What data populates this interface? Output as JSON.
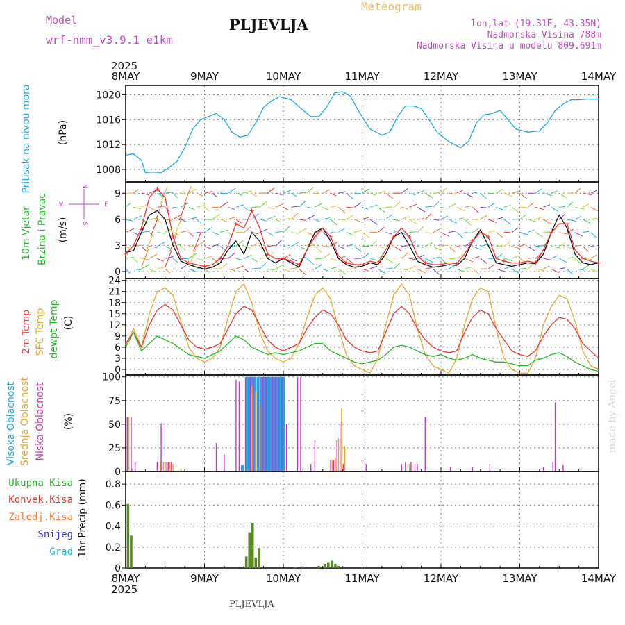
{
  "header": {
    "model_label": "Model",
    "model_name": "wrf-nmm_v3.9.1 e1km",
    "station": "PLJEVLJA",
    "meteogram": "Meteogram",
    "lonlat": "lon,lat (19.31E, 43.35N)",
    "elevation": "Nadmorska Visina 788m",
    "model_elevation": "Nadmorska Visina u modelu 809.691m",
    "year_top": "2025",
    "year_bottom": "2025",
    "footer_station": "PLJEVLJA",
    "credit": "made by Angel"
  },
  "colors": {
    "pressure": "#1fa8e6",
    "magenta": "#cc33cc",
    "green": "#22bb22",
    "orange": "#e8a830",
    "red": "#ee3333",
    "blue": "#3333dd",
    "cyan": "#22c0c0",
    "precip": "#5a8a22",
    "violet": "#7a3acc"
  },
  "time_axis": {
    "ticks": [
      "8MAY",
      "9MAY",
      "10MAY",
      "11MAY",
      "12MAY",
      "13MAY",
      "14MAY"
    ]
  },
  "panels": {
    "pressure": {
      "label": "Pritisak na nivou mora",
      "unit": "(hPa)"
    },
    "wind": {
      "label_1": "10m Vjetar",
      "label_2": "Brzina i Pravac",
      "unit": "(m/s)",
      "compass": {
        "n": "N",
        "s": "S",
        "w": "W",
        "e": "E"
      }
    },
    "temp": {
      "label_1": "2m Temp",
      "label_2": "SFC Temp",
      "label_3": "dewpt Temp",
      "unit": "(C)"
    },
    "cloud": {
      "label_1": "Visoka Oblacnost",
      "label_2": "Srednja Oblacnost",
      "label_3": "Niska Oblacnost",
      "unit": "(%)"
    },
    "precip": {
      "label_1": "Ukupna Kisa",
      "label_2": "Konvek.Kisa",
      "label_3": "Zaledj.Kisa",
      "label_4": "Snijeg",
      "label_5": "Grad",
      "unit": "1hr Precip (mm)"
    }
  },
  "chart_data": [
    {
      "type": "line",
      "title": "Pritisak na nivou mora",
      "ylabel": "(hPa)",
      "ylim": [
        1006,
        1021.5
      ],
      "yticks": [
        1008,
        1012,
        1016,
        1020
      ],
      "x_days": [
        0,
        0.1,
        0.2,
        0.25,
        0.35,
        0.45,
        0.55,
        0.65,
        0.75,
        0.85,
        0.95,
        1.05,
        1.15,
        1.25,
        1.35,
        1.45,
        1.55,
        1.65,
        1.75,
        1.85,
        1.95,
        2.1,
        2.25,
        2.35,
        2.45,
        2.55,
        2.65,
        2.75,
        2.85,
        2.95,
        3.1,
        3.25,
        3.35,
        3.45,
        3.55,
        3.65,
        3.75,
        3.85,
        3.95,
        4.1,
        4.25,
        4.35,
        4.45,
        4.55,
        4.65,
        4.75,
        4.85,
        4.95,
        5.1,
        5.25,
        5.35,
        5.45,
        5.55,
        5.65,
        5.75,
        5.85,
        5.95,
        6.0
      ],
      "series": [
        {
          "values": [
            1010.3,
            1010.5,
            1009.5,
            1007.5,
            1007.6,
            1007.5,
            1008.3,
            1009.3,
            1011.5,
            1014.5,
            1016,
            1016.5,
            1017,
            1016,
            1014,
            1013.2,
            1013.5,
            1015.5,
            1018,
            1019,
            1019.7,
            1019.2,
            1017.5,
            1016.5,
            1016.5,
            1018,
            1020.3,
            1020.5,
            1019.8,
            1017.5,
            1014.5,
            1013.5,
            1014,
            1016.5,
            1018.2,
            1018.2,
            1017.8,
            1016,
            1014,
            1012.5,
            1011.5,
            1012.5,
            1015.5,
            1016.8,
            1017,
            1017.5,
            1016,
            1014.5,
            1014,
            1014.2,
            1015.5,
            1017.5,
            1018.5,
            1019.2,
            1019.2,
            1019.3,
            1019.3,
            1019.3
          ]
        }
      ]
    },
    {
      "type": "line",
      "title": "10m Vjetar Brzina i Pravac",
      "ylabel": "(m/s)",
      "ylim": [
        -0.8,
        10.3
      ],
      "yticks": [
        0,
        3,
        6,
        9
      ],
      "x_days": [
        0,
        0.1,
        0.2,
        0.3,
        0.4,
        0.5,
        0.6,
        0.7,
        0.8,
        0.9,
        1.0,
        1.1,
        1.2,
        1.3,
        1.4,
        1.5,
        1.6,
        1.7,
        1.8,
        1.9,
        2.0,
        2.1,
        2.2,
        2.3,
        2.4,
        2.5,
        2.6,
        2.7,
        2.8,
        2.9,
        3.0,
        3.1,
        3.2,
        3.3,
        3.4,
        3.5,
        3.6,
        3.7,
        3.8,
        3.9,
        4.0,
        4.1,
        4.2,
        4.3,
        4.4,
        4.5,
        4.6,
        4.7,
        4.8,
        4.9,
        5.0,
        5.1,
        5.2,
        5.3,
        5.4,
        5.5,
        5.6,
        5.7,
        5.8,
        5.9,
        6.0
      ],
      "series": [
        {
          "values": [
            2.2,
            2.4,
            4.5,
            6.5,
            7.0,
            6.0,
            3.0,
            1.2,
            0.8,
            0.5,
            0.3,
            0.5,
            1.0,
            2.5,
            3.5,
            2.0,
            4.5,
            3.5,
            1.5,
            1.0,
            1.5,
            1.0,
            0.5,
            2.5,
            4.5,
            5.0,
            3.5,
            1.5,
            0.8,
            0.5,
            0.6,
            1.0,
            0.8,
            2.0,
            4.0,
            4.5,
            3.0,
            1.2,
            0.8,
            0.5,
            0.6,
            0.8,
            0.7,
            1.5,
            3.5,
            4.8,
            3.0,
            1.0,
            0.8,
            0.6,
            0.8,
            1.0,
            0.9,
            2.0,
            4.5,
            6.5,
            5.0,
            2.0,
            1.0,
            0.8,
            1.0
          ]
        },
        {
          "values": [
            2.0,
            3.0,
            5.0,
            8.5,
            9.5,
            8.5,
            4.0,
            1.5,
            1.0,
            0.8,
            0.6,
            0.8,
            1.5,
            3.0,
            5.5,
            5.0,
            7.0,
            5.0,
            2.0,
            1.5,
            1.5,
            1.2,
            0.8,
            2.5,
            4.0,
            5.0,
            4.0,
            1.8,
            1.0,
            0.8,
            0.8,
            1.2,
            1.0,
            2.5,
            4.0,
            5.0,
            4.0,
            1.8,
            1.0,
            0.8,
            0.8,
            1.0,
            0.9,
            2.0,
            3.5,
            4.5,
            4.0,
            1.5,
            1.2,
            1.0,
            1.0,
            1.2,
            1.0,
            2.5,
            4.5,
            5.5,
            5.5,
            2.5,
            1.5,
            1.2,
            1.0
          ]
        }
      ]
    },
    {
      "type": "line",
      "title": "2m Temp / SFC Temp / dewpt Temp",
      "ylabel": "(C)",
      "ylim": [
        -1.5,
        24.5
      ],
      "yticks": [
        0,
        3,
        6,
        9,
        12,
        15,
        18,
        21,
        24
      ],
      "x_days": [
        0,
        0.1,
        0.2,
        0.3,
        0.4,
        0.5,
        0.6,
        0.7,
        0.8,
        0.9,
        1.0,
        1.1,
        1.2,
        1.3,
        1.4,
        1.5,
        1.6,
        1.7,
        1.8,
        1.9,
        2.0,
        2.1,
        2.2,
        2.3,
        2.4,
        2.5,
        2.6,
        2.7,
        2.8,
        2.9,
        3.0,
        3.1,
        3.2,
        3.3,
        3.4,
        3.5,
        3.6,
        3.7,
        3.8,
        3.9,
        4.0,
        4.1,
        4.2,
        4.3,
        4.4,
        4.5,
        4.6,
        4.7,
        4.8,
        4.9,
        5.0,
        5.1,
        5.2,
        5.3,
        5.4,
        5.5,
        5.6,
        5.7,
        5.8,
        5.9,
        6.0
      ],
      "series": [
        {
          "values": [
            7,
            10,
            6,
            12,
            16,
            17.5,
            16,
            12,
            8,
            6,
            5.5,
            6,
            7,
            11,
            15,
            17,
            16,
            12,
            8,
            6,
            5,
            6,
            7,
            11,
            14,
            16,
            15,
            12,
            8,
            6,
            5,
            4.5,
            5,
            10,
            15,
            17,
            15,
            11,
            8,
            6,
            5,
            4.5,
            5,
            10,
            14,
            16,
            15,
            11,
            8,
            5,
            4,
            3.5,
            5,
            9,
            12,
            14,
            13.5,
            11,
            7,
            5,
            3
          ]
        },
        {
          "values": [
            6.5,
            11,
            6,
            15,
            21,
            22,
            20,
            13,
            6,
            3,
            2,
            3,
            6,
            14,
            21,
            23,
            18,
            10,
            5,
            3,
            2,
            3,
            7,
            14,
            20,
            22,
            19,
            11,
            4,
            1,
            0,
            -1,
            3,
            12,
            20,
            23,
            20,
            11,
            4,
            1,
            0,
            -1,
            3,
            12,
            19,
            22,
            21,
            11,
            3,
            0,
            -1,
            -1,
            3,
            12,
            17,
            20,
            19,
            13,
            5,
            1,
            0
          ]
        },
        {
          "values": [
            6,
            10,
            5,
            7,
            9,
            8,
            7,
            5.5,
            4,
            3.5,
            3,
            4,
            5,
            7,
            9,
            8,
            6,
            5,
            4,
            4.5,
            4,
            4.5,
            5,
            6,
            7,
            7,
            5,
            4,
            3,
            2,
            1.5,
            2,
            2.5,
            4,
            6,
            6.5,
            6,
            5,
            4,
            3.5,
            4,
            3,
            2.5,
            3,
            4,
            3,
            2.5,
            2,
            2,
            1.5,
            1,
            1,
            2.5,
            3,
            4,
            4.5,
            3.5,
            2,
            1,
            0,
            -0.5
          ]
        }
      ]
    },
    {
      "type": "bar",
      "title": "Visoka / Srednja / Niska Oblacnost",
      "ylabel": "(%)",
      "ylim": [
        0,
        102
      ],
      "yticks": [
        0,
        25,
        50,
        75,
        100
      ],
      "series": [
        {
          "name": "Visoka Oblacnost",
          "points": [
            [
              1.48,
              7
            ],
            [
              1.54,
              100
            ],
            [
              1.57,
              100
            ],
            [
              1.6,
              100
            ],
            [
              1.64,
              100
            ],
            [
              1.68,
              100
            ],
            [
              1.72,
              100
            ],
            [
              1.76,
              100
            ],
            [
              1.8,
              100
            ],
            [
              1.84,
              100
            ],
            [
              1.88,
              100
            ],
            [
              1.92,
              100
            ],
            [
              1.96,
              100
            ],
            [
              2.0,
              100
            ]
          ]
        },
        {
          "name": "Srednja Oblacnost",
          "points": [
            [
              0.04,
              58
            ],
            [
              0.08,
              3
            ],
            [
              0.44,
              10
            ],
            [
              0.48,
              10
            ],
            [
              0.52,
              10
            ],
            [
              0.56,
              10
            ],
            [
              0.6,
              8
            ],
            [
              0.7,
              3
            ],
            [
              1.6,
              90
            ],
            [
              1.65,
              85
            ],
            [
              1.7,
              70
            ],
            [
              2.62,
              12
            ],
            [
              2.66,
              15
            ],
            [
              2.7,
              35
            ],
            [
              2.74,
              67
            ],
            [
              2.78,
              27
            ],
            [
              3.55,
              8
            ],
            [
              3.6,
              8
            ]
          ]
        },
        {
          "name": "Niska Oblacnost",
          "points": [
            [
              0.02,
              58
            ],
            [
              0.07,
              58
            ],
            [
              0.12,
              10
            ],
            [
              0.4,
              10
            ],
            [
              0.45,
              51
            ],
            [
              0.5,
              10
            ],
            [
              0.54,
              10
            ],
            [
              0.58,
              10
            ],
            [
              1.15,
              30
            ],
            [
              1.25,
              18
            ],
            [
              1.4,
              97
            ],
            [
              1.44,
              95
            ],
            [
              1.52,
              100
            ],
            [
              1.58,
              100
            ],
            [
              1.62,
              100
            ],
            [
              1.68,
              100
            ],
            [
              1.74,
              100
            ],
            [
              1.78,
              100
            ],
            [
              1.82,
              100
            ],
            [
              1.86,
              100
            ],
            [
              1.9,
              100
            ],
            [
              1.94,
              100
            ],
            [
              1.98,
              100
            ],
            [
              2.04,
              50
            ],
            [
              2.18,
              100
            ],
            [
              2.22,
              100
            ],
            [
              2.35,
              8
            ],
            [
              2.4,
              33
            ],
            [
              2.6,
              12
            ],
            [
              2.64,
              12
            ],
            [
              2.68,
              33
            ],
            [
              2.72,
              50
            ],
            [
              2.76,
              8
            ],
            [
              3.05,
              8
            ],
            [
              3.5,
              8
            ],
            [
              3.55,
              10
            ],
            [
              3.62,
              10
            ],
            [
              3.67,
              8
            ],
            [
              3.7,
              8
            ],
            [
              3.8,
              58
            ],
            [
              4.12,
              5
            ],
            [
              4.4,
              5
            ],
            [
              4.62,
              8
            ],
            [
              5.3,
              5
            ],
            [
              5.42,
              10
            ],
            [
              5.45,
              73
            ],
            [
              5.55,
              7
            ]
          ]
        }
      ]
    },
    {
      "type": "bar",
      "title": "1hr Precip",
      "ylabel": "1hr Precip (mm)",
      "ylim": [
        0,
        0.92
      ],
      "yticks": [
        0,
        0.2,
        0.4,
        0.6,
        0.8
      ],
      "series": [
        {
          "name": "Ukupna Kisa",
          "points": [
            [
              0.03,
              0.61
            ],
            [
              0.07,
              0.31
            ],
            [
              1.53,
              0.11
            ],
            [
              1.57,
              0.34
            ],
            [
              1.61,
              0.43
            ],
            [
              1.65,
              0.1
            ],
            [
              1.69,
              0.19
            ],
            [
              2.15,
              0.01
            ],
            [
              2.45,
              0.02
            ],
            [
              2.53,
              0.04
            ],
            [
              2.57,
              0.05
            ],
            [
              2.62,
              0.07
            ],
            [
              2.66,
              0.04
            ],
            [
              2.7,
              0.02
            ]
          ]
        }
      ]
    }
  ]
}
